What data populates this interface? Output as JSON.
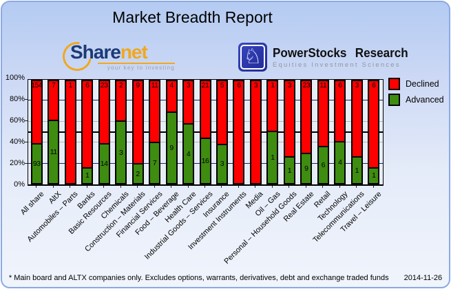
{
  "title": "Market Breadth Report",
  "logos": {
    "sharenet": {
      "name_part1": "Share",
      "name_part2": "net",
      "tagline": "your key to investing",
      "brand_blue": "#1d3a75",
      "brand_orange": "#f2a71d"
    },
    "powerstocks": {
      "name": "PowerStocks Research",
      "subtitle": "Equities Investment Sciences",
      "icon": "knight-chess-icon",
      "badge_color": "#2633a8",
      "knight_glyph": "♘"
    }
  },
  "chart_data": {
    "type": "bar",
    "stacked": true,
    "unit": "percent of companies, labels are company counts",
    "title": "",
    "xlabel": "",
    "ylabel": "",
    "ylim": [
      0,
      100
    ],
    "grid": "on",
    "yticks": [
      "0%",
      "20%",
      "40%",
      "60%",
      "80%",
      "100%"
    ],
    "legend_position": "top-right",
    "legend": [
      {
        "label": "Declined",
        "color": "#ff0000"
      },
      {
        "label": "Advanced",
        "color": "#3e8c10"
      }
    ],
    "categories": [
      "All share",
      "AltX",
      "Automobiles – Parts",
      "Banks",
      "Basic Resources",
      "Chemicals",
      "Construction – Materials",
      "Financial Services",
      "Food – Beverage",
      "Health Care",
      "Industrial Goods – Services",
      "Insurance",
      "Investment Instruments",
      "Media",
      "Oil – Gas",
      "Personal – Household Goods",
      "Real Estate",
      "Retail",
      "Technology",
      "Telecommunications",
      "Travel – Leisure"
    ],
    "series": [
      {
        "name": "Declined",
        "color": "#ff0000",
        "values": [
          154,
          7,
          1,
          6,
          23,
          2,
          9,
          11,
          4,
          3,
          21,
          5,
          6,
          3,
          1,
          3,
          23,
          11,
          6,
          3,
          6
        ]
      },
      {
        "name": "Advanced",
        "color": "#3e8c10",
        "values": [
          93,
          11,
          0,
          1,
          14,
          3,
          2,
          7,
          9,
          4,
          16,
          3,
          0,
          0,
          1,
          1,
          9,
          6,
          4,
          1,
          1
        ]
      }
    ],
    "gridlines": [
      {
        "percent": 80,
        "style": "navy"
      },
      {
        "percent": 60,
        "style": "gray"
      },
      {
        "percent": 50,
        "style": "black"
      },
      {
        "percent": 40,
        "style": "gray"
      },
      {
        "percent": 20,
        "style": "navy"
      }
    ]
  },
  "footer": {
    "note": "* Main board and ALTX companies only. Excludes options, warrants, derivatives, debt and exchange traded funds",
    "date": "2014-11-26"
  }
}
